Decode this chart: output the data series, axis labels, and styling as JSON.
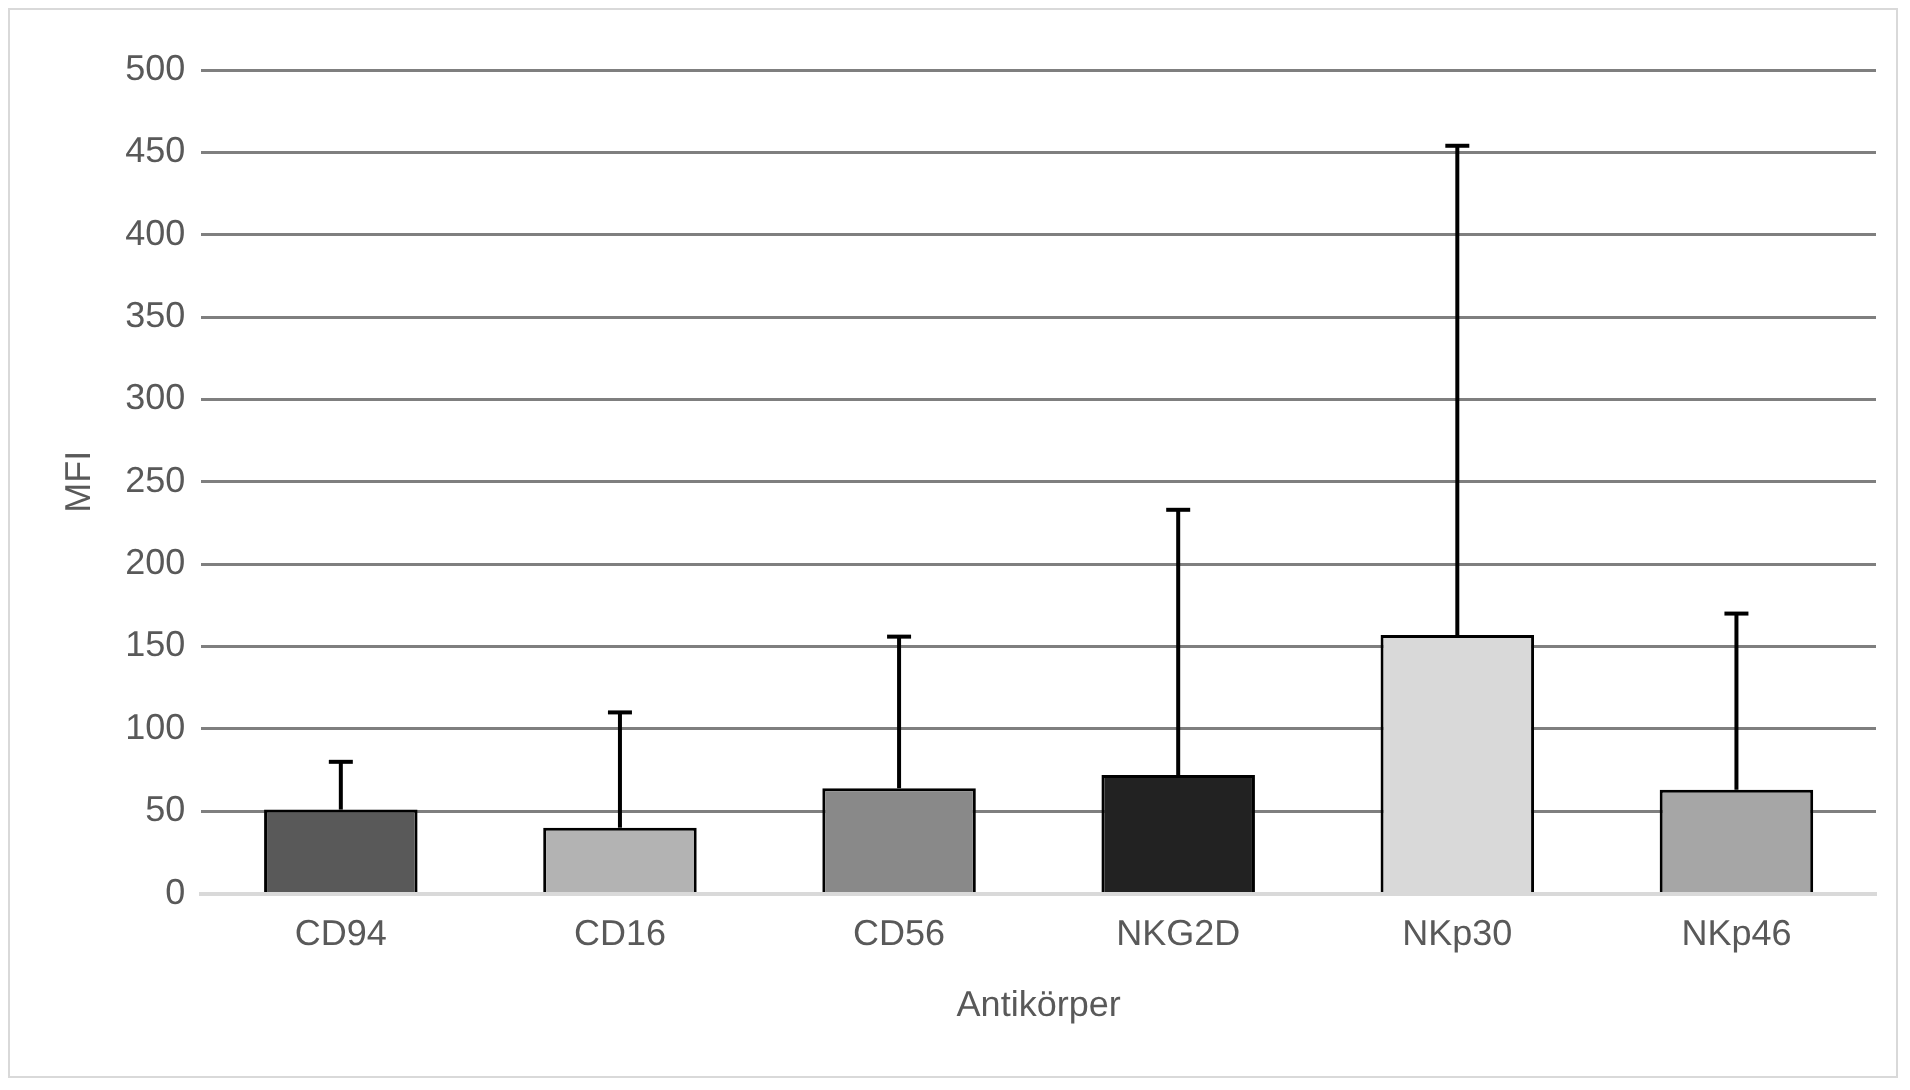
{
  "chart_data": {
    "type": "bar",
    "xlabel": "Antikörper",
    "ylabel": "MFI",
    "categories": [
      "CD94",
      "CD16",
      "CD56",
      "NKG2D",
      "NKp30",
      "NKp46"
    ],
    "values": [
      51,
      40,
      64,
      72,
      157,
      63
    ],
    "colors": [
      "#595959",
      "#b3b3b3",
      "#898989",
      "#222222",
      "#d9d9d9",
      "#a6a6a6"
    ],
    "errors": [
      [
        51,
        80
      ],
      [
        40,
        110
      ],
      [
        64,
        156
      ],
      [
        72,
        233
      ],
      [
        157,
        454
      ],
      [
        63,
        170
      ]
    ],
    "ylim": [
      0,
      500
    ],
    "yticks": [
      0,
      50,
      100,
      150,
      200,
      250,
      300,
      350,
      400,
      450,
      500
    ],
    "grid": "y",
    "legend": false
  }
}
